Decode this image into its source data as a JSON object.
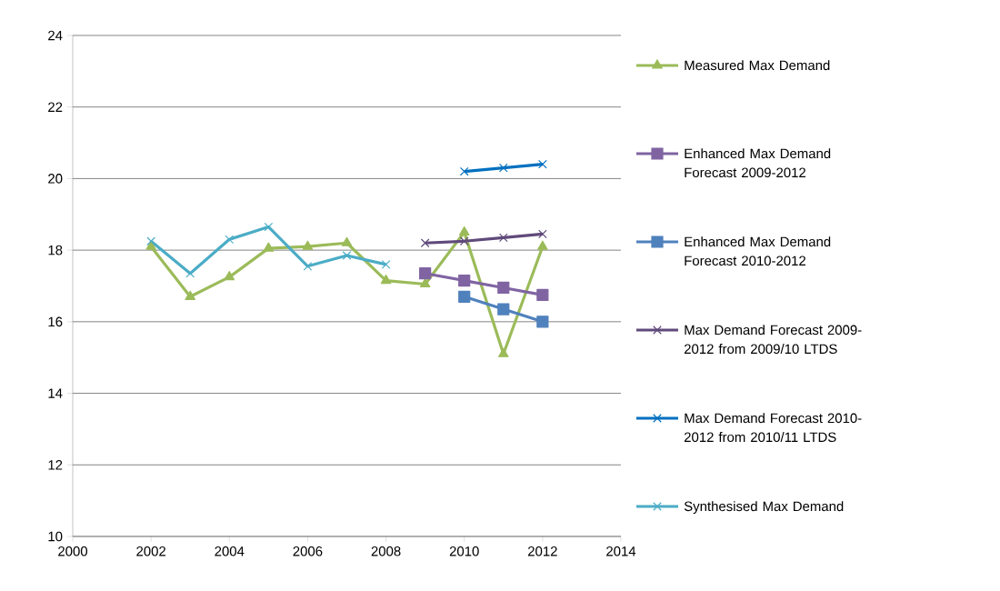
{
  "chart_data": {
    "type": "line",
    "xlim": [
      2000,
      2014
    ],
    "xticks": [
      2000,
      2002,
      2004,
      2006,
      2008,
      2010,
      2012,
      2014
    ],
    "ylim": [
      10,
      24
    ],
    "yticks": [
      10,
      12,
      14,
      16,
      18,
      20,
      22,
      24
    ],
    "grid": "y",
    "legend": "right",
    "series": [
      {
        "name": "Measured Max Demand",
        "color": "#9bbb59",
        "marker": "triangle",
        "x": [
          2002,
          2003,
          2004,
          2005,
          2006,
          2007,
          2008,
          2009,
          2010,
          2011,
          2012
        ],
        "values": [
          18.1,
          16.7,
          17.25,
          18.05,
          18.1,
          18.2,
          17.15,
          17.05,
          18.5,
          15.1,
          18.1
        ]
      },
      {
        "name": "Enhanced Max Demand Forecast 2009-2012",
        "color": "#8064a2",
        "marker": "square",
        "x": [
          2009,
          2010,
          2011,
          2012
        ],
        "values": [
          17.35,
          17.15,
          16.95,
          16.75
        ]
      },
      {
        "name": "Enhanced Max Demand Forecast 2010-2012",
        "color": "#4f81bd",
        "marker": "square",
        "x": [
          2010,
          2011,
          2012
        ],
        "values": [
          16.7,
          16.35,
          16.0
        ]
      },
      {
        "name": "Max Demand Forecast 2009-2012 from 2009/10 LTDS",
        "color": "#604a7b",
        "marker": "cross",
        "x": [
          2009,
          2010,
          2011,
          2012
        ],
        "values": [
          18.2,
          18.25,
          18.35,
          18.45
        ]
      },
      {
        "name": "Max Demand Forecast 2010-2012 from 2010/11 LTDS",
        "color": "#0070c0",
        "marker": "cross",
        "x": [
          2010,
          2011,
          2012
        ],
        "values": [
          20.2,
          20.3,
          20.4
        ]
      },
      {
        "name": "Synthesised Max Demand",
        "color": "#4bacc6",
        "marker": "cross",
        "x": [
          2002,
          2003,
          2004,
          2005,
          2006,
          2007,
          2008
        ],
        "values": [
          18.25,
          17.35,
          18.3,
          18.65,
          17.55,
          17.85,
          17.6
        ]
      }
    ]
  }
}
